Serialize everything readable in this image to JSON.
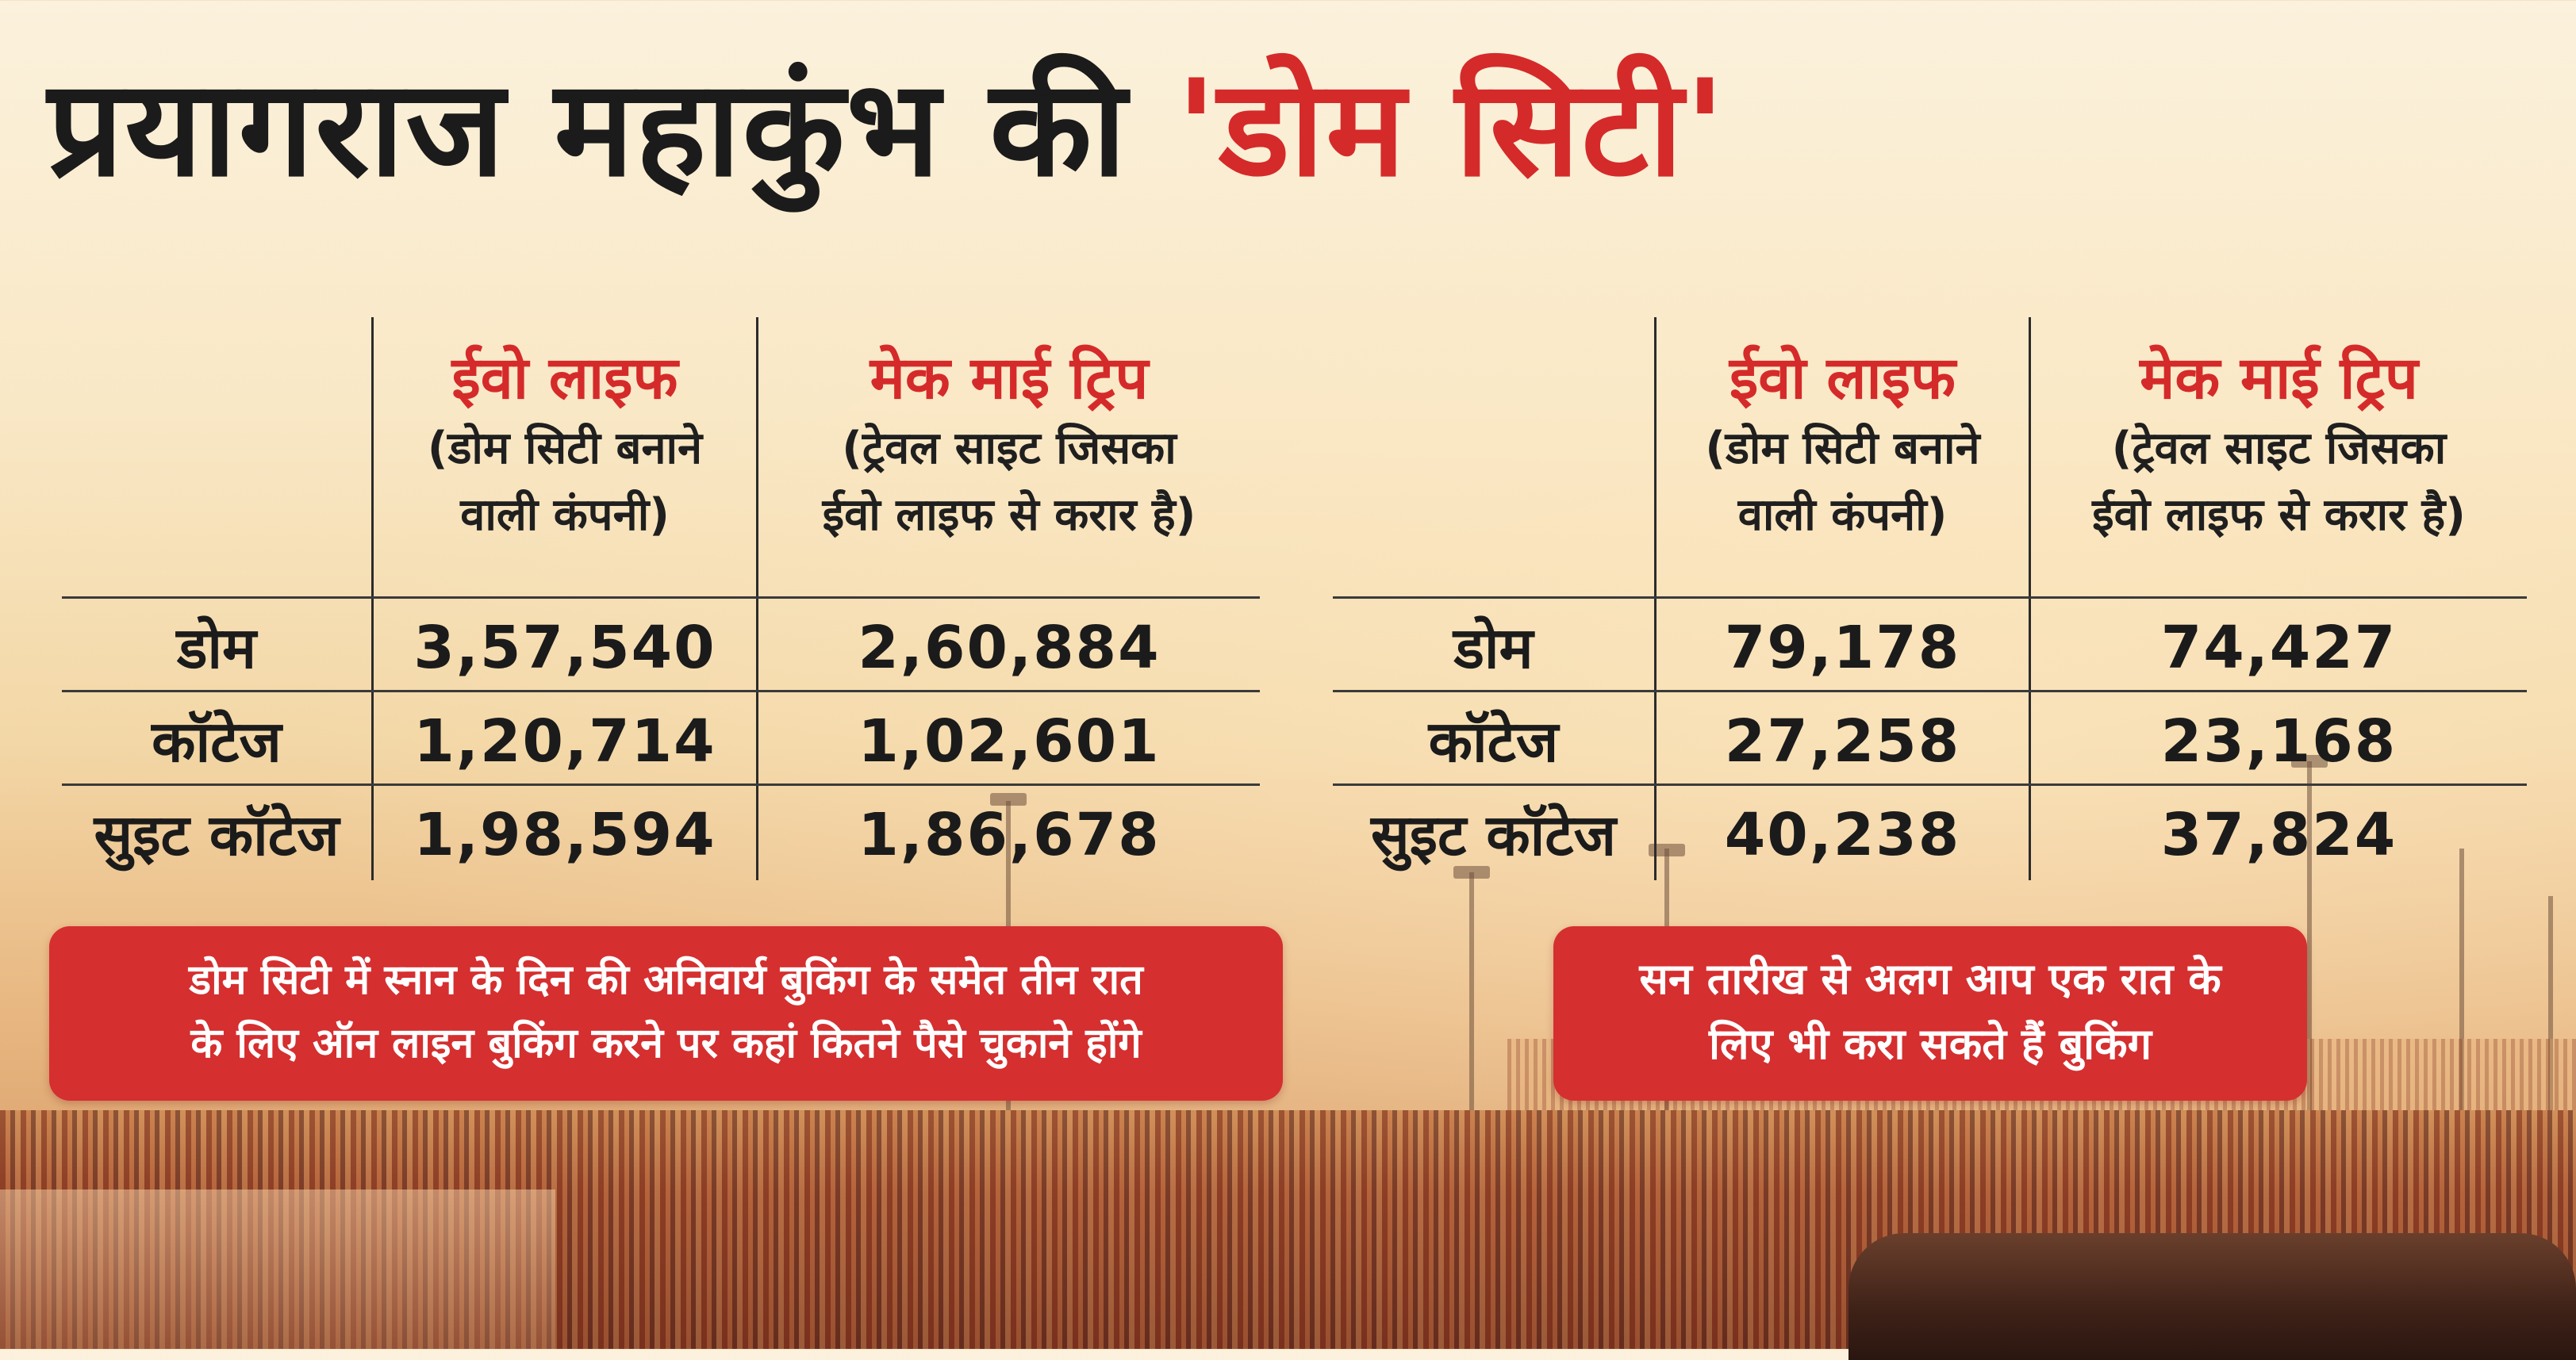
{
  "title": {
    "main": "प्रयागराज महाकुंभ की ",
    "accent": "'डोम सिटी'"
  },
  "tables": [
    {
      "columns": [
        {
          "title": "ईवो लाइफ",
          "subtitle_lines": [
            "(डोम सिटी बनाने",
            "वाली कंपनी)"
          ]
        },
        {
          "title": "मेक माई ट्रिप",
          "subtitle_lines": [
            "(ट्रेवल साइट जिसका",
            "ईवो लाइफ से करार है)"
          ]
        }
      ],
      "rows": [
        {
          "label": "डोम",
          "values": [
            "3,57,540",
            "2,60,884"
          ]
        },
        {
          "label": "कॉटेज",
          "values": [
            "1,20,714",
            "1,02,601"
          ]
        },
        {
          "label": "सुइट कॉटेज",
          "values": [
            "1,98,594",
            "1,86,678"
          ]
        }
      ]
    },
    {
      "columns": [
        {
          "title": "ईवो लाइफ",
          "subtitle_lines": [
            "(डोम सिटी बनाने",
            "वाली कंपनी)"
          ]
        },
        {
          "title": "मेक माई ट्रिप",
          "subtitle_lines": [
            "(ट्रेवल साइट जिसका",
            "ईवो लाइफ से करार है)"
          ]
        }
      ],
      "rows": [
        {
          "label": "डोम",
          "values": [
            "79,178",
            "74,427"
          ]
        },
        {
          "label": "कॉटेज",
          "values": [
            "27,258",
            "23,168"
          ]
        },
        {
          "label": "सुइट कॉटेज",
          "values": [
            "40,238",
            "37,824"
          ]
        }
      ]
    }
  ],
  "callouts": [
    {
      "lines": [
        "डोम सिटी में स्नान के दिन की अनिवार्य बुकिंग के समेत तीन रात",
        "के लिए ऑन लाइन बुकिंग करने पर कहां कितने पैसे चुकाने होंगे"
      ]
    },
    {
      "lines": [
        "सन तारीख से अलग आप एक रात के",
        "लिए भी करा सकते हैं बुकिंग"
      ]
    }
  ],
  "colors": {
    "accent_red": "#d52a2a",
    "callout_bg": "#d52f30",
    "text_dark": "#1b1b1b"
  }
}
